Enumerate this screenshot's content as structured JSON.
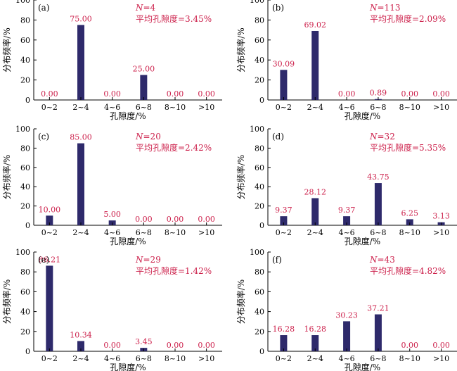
{
  "colors": {
    "bar": "#2e2a6b",
    "annotation": "#cc1f4a",
    "axis": "#000000"
  },
  "chart_data": [
    {
      "type": "bar",
      "panel": "(a)",
      "categories": [
        "0~2",
        "2~4",
        "4~6",
        "6~8",
        "8~10",
        ">10"
      ],
      "values": [
        0.0,
        75.0,
        0.0,
        25.0,
        0.0,
        0.0
      ],
      "value_labels": [
        "0.00",
        "75.00",
        "0.00",
        "25.00",
        "0.00",
        "0.00"
      ],
      "n_prefix": "N",
      "n_value": "=4",
      "mean_text": "平均孔隙度=3.45%",
      "xlabel": "孔隙度/%",
      "ylabel": "分布频率/%",
      "ylim": [
        0,
        100
      ],
      "yticks": [
        0,
        20,
        40,
        60,
        80,
        100
      ]
    },
    {
      "type": "bar",
      "panel": "(b)",
      "categories": [
        "0~2",
        "2~4",
        "4~6",
        "6~8",
        "8~10",
        ">10"
      ],
      "values": [
        30.09,
        69.02,
        0.0,
        0.89,
        0.0,
        0.0
      ],
      "value_labels": [
        "30.09",
        "69.02",
        "0.00",
        "0.89",
        "0.00",
        "0.00"
      ],
      "n_prefix": "N",
      "n_value": "=113",
      "mean_text": "平均孔隙度=2.09%",
      "xlabel": "孔隙度/%",
      "ylabel": "分布频率/%",
      "ylim": [
        0,
        100
      ],
      "yticks": [
        0,
        20,
        40,
        60,
        80,
        100
      ]
    },
    {
      "type": "bar",
      "panel": "(c)",
      "categories": [
        "0~2",
        "2~4",
        "4~6",
        "6~8",
        "8~10",
        ">10"
      ],
      "values": [
        10.0,
        85.0,
        5.0,
        0.0,
        0.0,
        0.0
      ],
      "value_labels": [
        "10.00",
        "85.00",
        "5.00",
        "0.00",
        "0.00",
        "0.00"
      ],
      "n_prefix": "N",
      "n_value": "=20",
      "mean_text": "平均孔隙度=2.42%",
      "xlabel": "孔隙度/%",
      "ylabel": "分布频率/%",
      "ylim": [
        0,
        100
      ],
      "yticks": [
        0,
        20,
        40,
        60,
        80,
        100
      ]
    },
    {
      "type": "bar",
      "panel": "(d)",
      "categories": [
        "0~2",
        "2~4",
        "4~6",
        "6~8",
        "8~10",
        ">10"
      ],
      "values": [
        9.37,
        28.12,
        9.37,
        43.75,
        6.25,
        3.13
      ],
      "value_labels": [
        "9.37",
        "28.12",
        "9.37",
        "43.75",
        "6.25",
        "3.13"
      ],
      "n_prefix": "N",
      "n_value": "=32",
      "mean_text": "平均孔隙度=5.35%",
      "xlabel": "孔隙度/%",
      "ylabel": "分布频率/%",
      "ylim": [
        0,
        100
      ],
      "yticks": [
        0,
        20,
        40,
        60,
        80,
        100
      ]
    },
    {
      "type": "bar",
      "panel": "(e)",
      "categories": [
        "0~2",
        "2~4",
        "4~6",
        "6~8",
        "8~10",
        ">10"
      ],
      "values": [
        86.21,
        10.34,
        0.0,
        3.45,
        0.0,
        0.0
      ],
      "value_labels": [
        "86.21",
        "10.34",
        "0.00",
        "3.45",
        "0.00",
        "0.00"
      ],
      "n_prefix": "N",
      "n_value": "=29",
      "mean_text": "平均孔隙度=1.42%",
      "xlabel": "孔隙度/%",
      "ylabel": "分布频率/%",
      "ylim": [
        0,
        100
      ],
      "yticks": [
        0,
        20,
        40,
        60,
        80,
        100
      ]
    },
    {
      "type": "bar",
      "panel": "(f)",
      "categories": [
        "0~2",
        "2~4",
        "4~6",
        "6~8",
        "8~10",
        ">10"
      ],
      "values": [
        16.28,
        16.28,
        30.23,
        37.21,
        0.0,
        0.0
      ],
      "value_labels": [
        "16.28",
        "16.28",
        "30.23",
        "37.21",
        "0.00",
        "0.00"
      ],
      "n_prefix": "N",
      "n_value": "=43",
      "mean_text": "平均孔隙度=4.82%",
      "xlabel": "孔隙度/%",
      "ylabel": "分布频率/%",
      "ylim": [
        0,
        100
      ],
      "yticks": [
        0,
        20,
        40,
        60,
        80,
        100
      ]
    }
  ]
}
